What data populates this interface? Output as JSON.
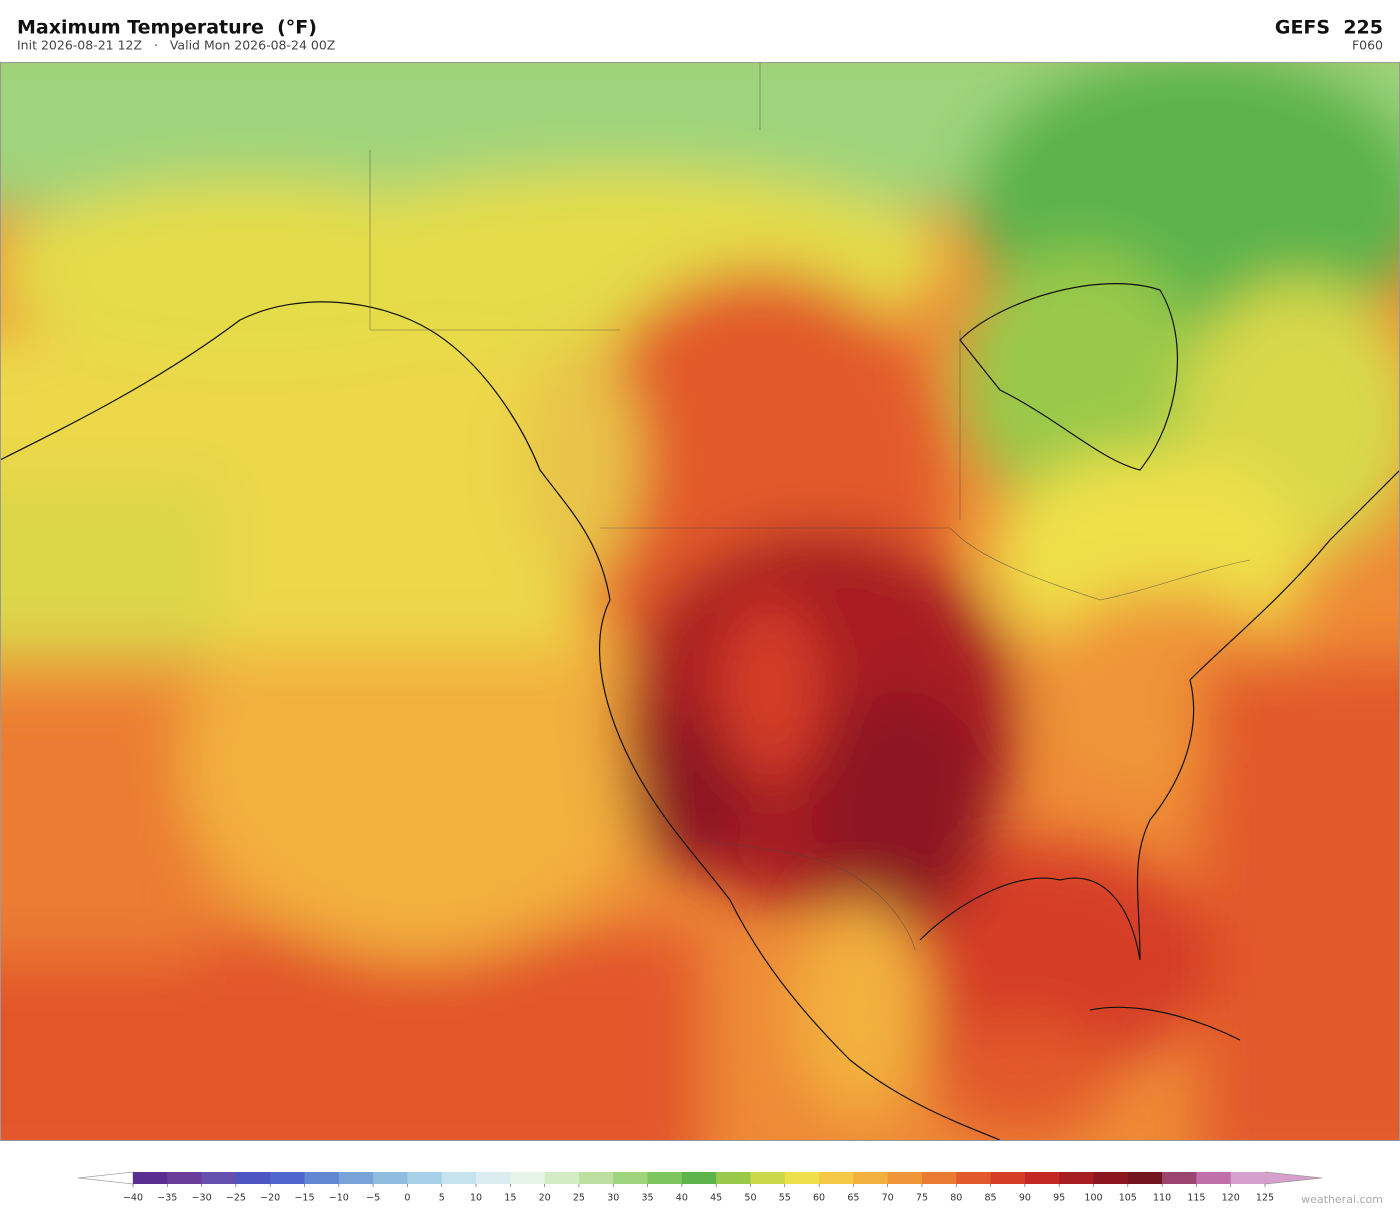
{
  "header": {
    "title": "Maximum Temperature  (°F)",
    "subtitle": "Init 2026-08-21 12Z   ·   Valid Mon 2026-08-24 00Z",
    "model": "GEFS  225",
    "forecast_hour": "F060"
  },
  "colorbar": {
    "ticks": [
      {
        "value": -40,
        "label": "−40"
      },
      {
        "value": -35,
        "label": "−35"
      },
      {
        "value": -30,
        "label": "−30"
      },
      {
        "value": -25,
        "label": "−25"
      },
      {
        "value": -20,
        "label": "−20"
      },
      {
        "value": -15,
        "label": "−15"
      },
      {
        "value": -10,
        "label": "−10"
      },
      {
        "value": -5,
        "label": "−5"
      },
      0,
      5,
      10,
      15,
      20,
      25,
      30,
      35,
      40,
      45,
      50,
      55,
      60,
      65,
      70,
      75,
      80,
      85,
      90,
      95,
      100,
      105,
      110,
      115,
      120,
      125
    ],
    "colors": [
      "#5a2d91",
      "#6a3d9a",
      "#6550b0",
      "#4c55c2",
      "#4f66cc",
      "#6087d0",
      "#77a3d8",
      "#8fbde0",
      "#a8d0e8",
      "#c5e3ef",
      "#dcedf2",
      "#e6f5e6",
      "#d4ecc4",
      "#bde0a0",
      "#9ed47c",
      "#7dc55e",
      "#5cb44b",
      "#99c94a",
      "#cbd84a",
      "#eee04a",
      "#f5c845",
      "#f2b03e",
      "#ef9638",
      "#eb7b32",
      "#e25a2b",
      "#d63d26",
      "#c42824",
      "#a81d22",
      "#8c1620",
      "#721520",
      "#9c4470",
      "#c070a8",
      "#d6a0cc"
    ],
    "under_color": "#ffffff",
    "over_color": "#d6a0cc"
  },
  "watermark": "weatherai.com"
}
